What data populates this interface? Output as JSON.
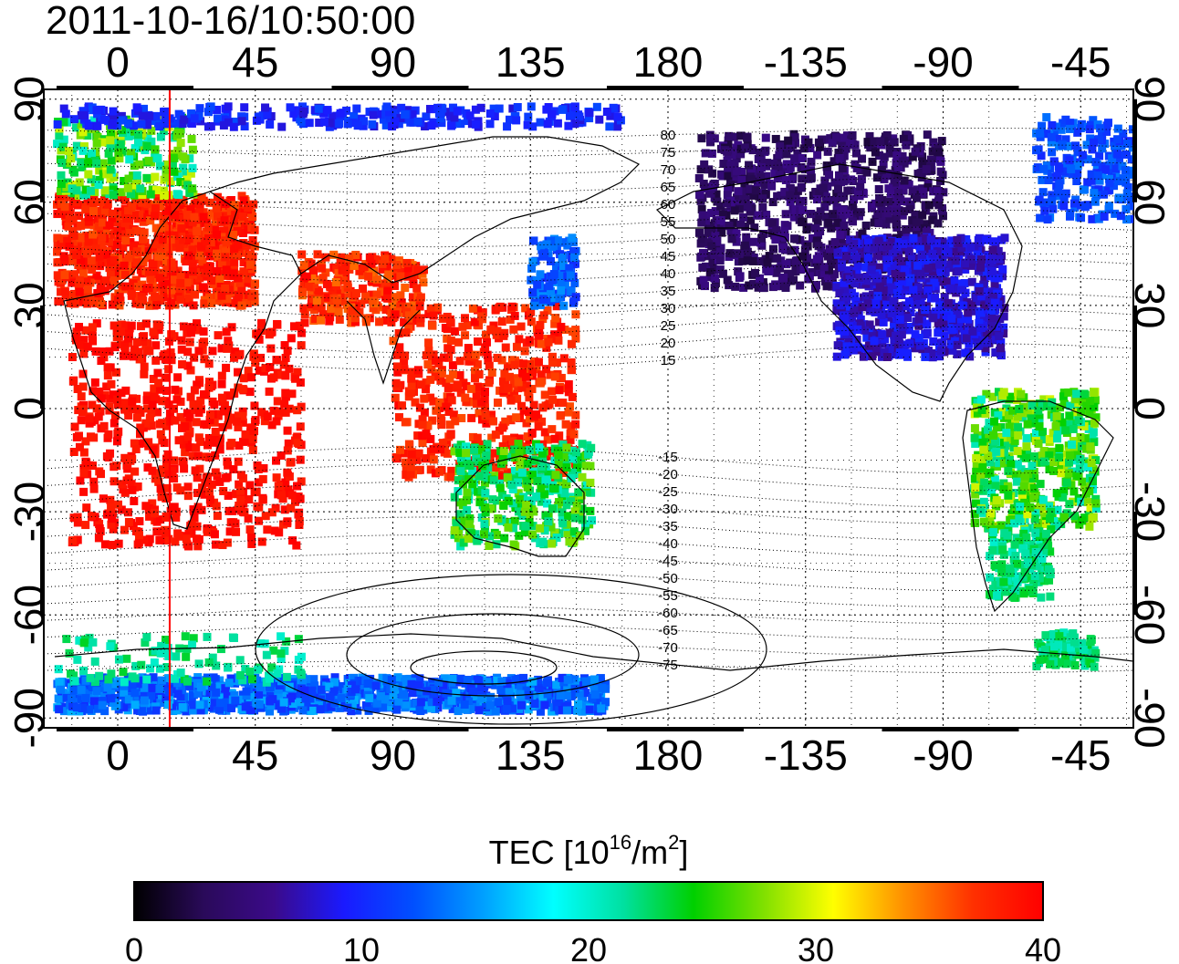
{
  "title": "2011-10-16/10:50:00",
  "map": {
    "lon_ticks_top": [
      "0",
      "45",
      "90",
      "135",
      "180",
      "-135",
      "-90",
      "-45"
    ],
    "lon_ticks_bottom": [
      "0",
      "45",
      "90",
      "135",
      "180",
      "-135",
      "-90",
      "-45"
    ],
    "lat_ticks_left": [
      "90",
      "60",
      "30",
      "0",
      "-30",
      "-60",
      "-90"
    ],
    "lat_ticks_right": [
      "90",
      "60",
      "30",
      "0",
      "-30",
      "-60",
      "-90"
    ],
    "contour_labels": [
      "80",
      "75",
      "70",
      "65",
      "60",
      "55",
      "50",
      "45",
      "40",
      "35",
      "30",
      "25",
      "20",
      "15",
      "-15",
      "-20",
      "-25",
      "-30",
      "-35",
      "-40",
      "-45",
      "-50",
      "-55",
      "-60",
      "-65",
      "-70",
      "-75"
    ],
    "terminator_longitude": 17
  },
  "colorbar": {
    "label_main": "TEC  [10",
    "label_sup1": "16",
    "label_mid": "/m",
    "label_sup2": "2",
    "label_end": "]",
    "ticks": [
      "0",
      "10",
      "20",
      "30",
      "40"
    ],
    "stops": [
      "#000000",
      "#2a0a5a",
      "#3b0a8a",
      "#1a1aff",
      "#0050ff",
      "#00a0ff",
      "#00ffff",
      "#00e0a0",
      "#00d000",
      "#80e000",
      "#ffff00",
      "#ff9000",
      "#ff3000",
      "#ff0000"
    ]
  }
}
